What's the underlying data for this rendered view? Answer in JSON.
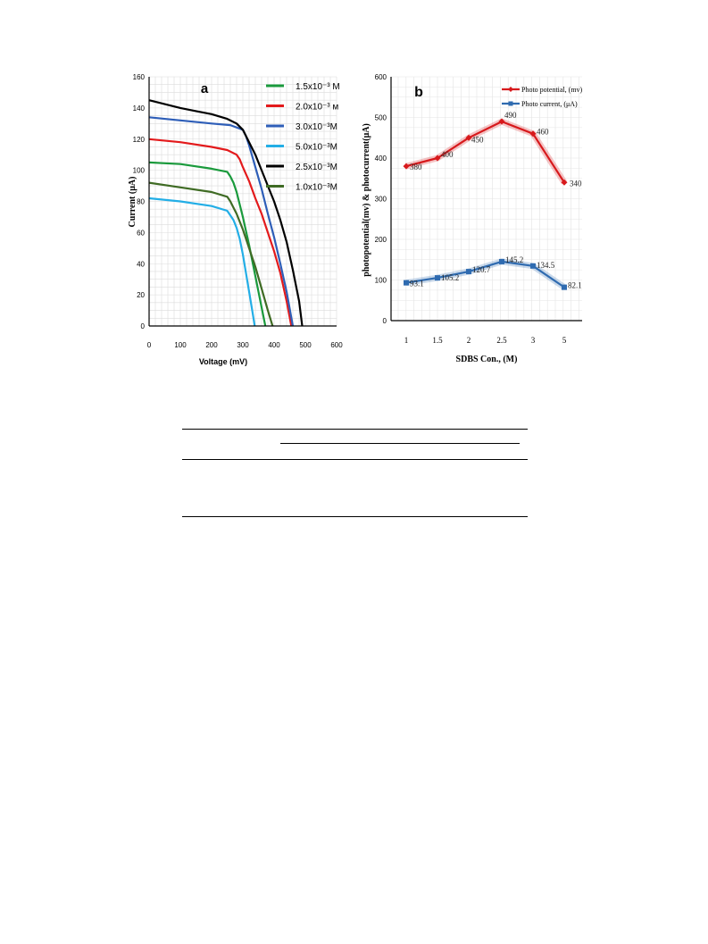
{
  "chart_data": [
    {
      "panel_label": "a",
      "type": "line",
      "xlabel": "Voltage (mV)",
      "ylabel": "Current (μA)",
      "xlim": [
        0,
        600
      ],
      "ylim": [
        0,
        160
      ],
      "xticks": [
        0,
        100,
        200,
        300,
        400,
        500,
        600
      ],
      "yticks": [
        0,
        20,
        40,
        60,
        80,
        100,
        120,
        140,
        160
      ],
      "grid": true,
      "legend_position": "top-right",
      "series": [
        {
          "name": "1.5x10⁻³ M",
          "color": "#1a9a3c",
          "x": [
            0,
            100,
            200,
            250,
            260,
            270,
            280,
            300,
            320,
            340,
            360,
            372
          ],
          "y": [
            105,
            104,
            101,
            99,
            96,
            92,
            86,
            70,
            52,
            32,
            12,
            0
          ]
        },
        {
          "name": "2.0x10⁻³ м",
          "color": "#e31a1c",
          "x": [
            0,
            100,
            200,
            250,
            280,
            290,
            300,
            320,
            340,
            360,
            380,
            400,
            420,
            440,
            455
          ],
          "y": [
            120,
            118,
            115,
            113,
            110,
            107,
            102,
            93,
            82,
            72,
            60,
            48,
            34,
            16,
            0
          ]
        },
        {
          "name": "3.0x10⁻³M",
          "color": "#2e5eb8",
          "x": [
            0,
            100,
            200,
            260,
            300,
            310,
            320,
            340,
            360,
            380,
            400,
            420,
            440,
            460
          ],
          "y": [
            134,
            132,
            130,
            129,
            126,
            122,
            116,
            102,
            88,
            72,
            57,
            40,
            22,
            0
          ]
        },
        {
          "name": "5.0x10⁻³M",
          "color": "#23aee6",
          "x": [
            0,
            100,
            200,
            250,
            270,
            280,
            290,
            300,
            310,
            320,
            330,
            338
          ],
          "y": [
            82,
            80,
            77,
            74,
            68,
            63,
            56,
            46,
            34,
            22,
            10,
            0
          ]
        },
        {
          "name": "2.5x10⁻³M",
          "color": "#000000",
          "x": [
            0,
            100,
            150,
            200,
            250,
            280,
            300,
            320,
            340,
            360,
            380,
            400,
            420,
            440,
            460,
            480,
            490
          ],
          "y": [
            145,
            140,
            138,
            136,
            133,
            130,
            126,
            118,
            110,
            100,
            90,
            80,
            68,
            54,
            36,
            16,
            0
          ]
        },
        {
          "name": "1.0x10⁻³M",
          "color": "#3f6b24",
          "x": [
            0,
            100,
            200,
            250,
            260,
            270,
            280,
            300,
            320,
            340,
            360,
            380,
            395
          ],
          "y": [
            92,
            89,
            86,
            83,
            80,
            76,
            72,
            62,
            50,
            38,
            24,
            10,
            0
          ]
        }
      ]
    },
    {
      "panel_label": "b",
      "type": "line",
      "xlabel": "SDBS Con., (M)",
      "ylabel": "photopotential(mv) & photocurrent(μA)",
      "categories": [
        "1",
        "1.5",
        "2",
        "2.5",
        "3",
        "5"
      ],
      "ylim": [
        0,
        600
      ],
      "yticks": [
        0,
        100,
        200,
        300,
        400,
        500,
        600
      ],
      "grid": true,
      "legend_position": "top-right",
      "series": [
        {
          "name": "Photo potential, (mv)",
          "color": "#d7191c",
          "values": [
            380,
            400,
            450,
            490,
            460,
            340
          ],
          "labels": [
            "380",
            "400",
            "450",
            "490",
            "460",
            "340"
          ]
        },
        {
          "name": "Photo current, (μA)",
          "color": "#2f6bb0",
          "values": [
            93.1,
            105.2,
            120.7,
            145.2,
            134.5,
            82.1
          ],
          "labels": [
            "93.1",
            "105.2",
            "120.7",
            "145.2",
            "134.5",
            "82.1"
          ]
        }
      ]
    }
  ]
}
